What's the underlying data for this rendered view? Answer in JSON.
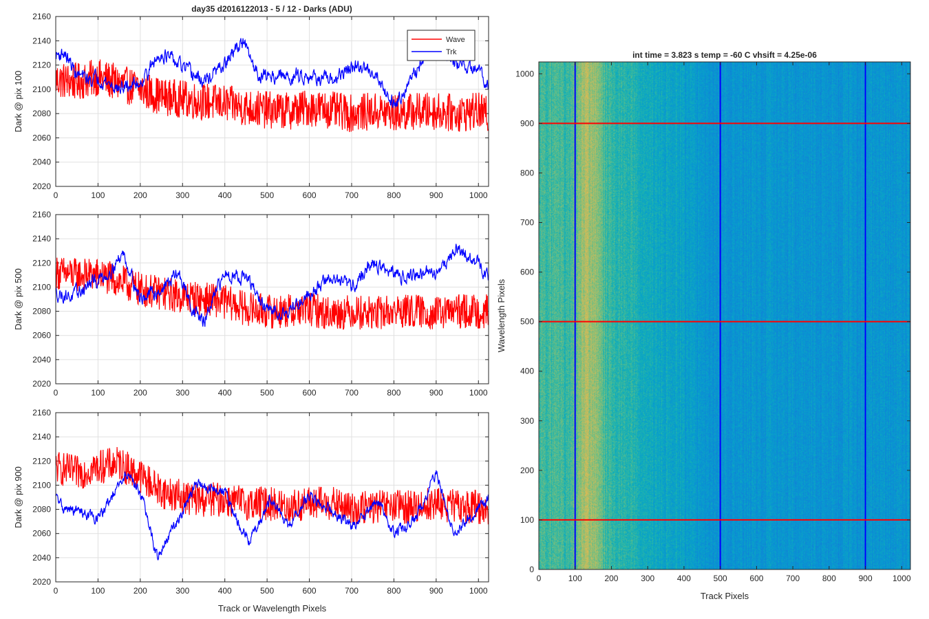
{
  "figure_title": "day35 d2016122013 - 5 / 12 - Darks (ADU)",
  "chart_data": [
    {
      "type": "line",
      "title": "day35 d2016122013 - 5 / 12 - Darks (ADU)",
      "ylabel": "Dark @ pix 100",
      "xlabel": "",
      "xlim": [
        0,
        1024
      ],
      "ylim": [
        2020,
        2160
      ],
      "xticks": [
        0,
        100,
        200,
        300,
        400,
        500,
        600,
        700,
        800,
        900,
        1000
      ],
      "yticks": [
        2020,
        2040,
        2060,
        2080,
        2100,
        2120,
        2140,
        2160
      ],
      "grid": true,
      "legend": {
        "placement": "top-right",
        "entries": [
          "Wave",
          "Trk"
        ]
      },
      "series": [
        {
          "name": "Wave",
          "color": "#ff0000",
          "noise": 12,
          "x": [
            0,
            50,
            100,
            150,
            200,
            250,
            300,
            350,
            400,
            450,
            500,
            550,
            600,
            650,
            700,
            750,
            800,
            850,
            900,
            950,
            1000,
            1024
          ],
          "values": [
            2108,
            2106,
            2110,
            2105,
            2100,
            2094,
            2092,
            2090,
            2088,
            2085,
            2083,
            2082,
            2085,
            2083,
            2080,
            2082,
            2080,
            2082,
            2082,
            2080,
            2082,
            2078
          ]
        },
        {
          "name": "Trk",
          "color": "#0000ff",
          "noise": 5,
          "x": [
            0,
            20,
            50,
            80,
            100,
            150,
            200,
            250,
            300,
            350,
            400,
            440,
            480,
            550,
            600,
            650,
            700,
            750,
            800,
            850,
            890,
            950,
            1000,
            1024
          ],
          "values": [
            2128,
            2130,
            2112,
            2108,
            2110,
            2100,
            2106,
            2130,
            2118,
            2106,
            2120,
            2140,
            2112,
            2110,
            2112,
            2106,
            2118,
            2116,
            2088,
            2112,
            2140,
            2120,
            2115,
            2105
          ]
        }
      ]
    },
    {
      "type": "line",
      "ylabel": "Dark @ pix 500",
      "xlabel": "",
      "xlim": [
        0,
        1024
      ],
      "ylim": [
        2020,
        2160
      ],
      "xticks": [
        0,
        100,
        200,
        300,
        400,
        500,
        600,
        700,
        800,
        900,
        1000
      ],
      "yticks": [
        2020,
        2040,
        2060,
        2080,
        2100,
        2120,
        2140,
        2160
      ],
      "grid": true,
      "series": [
        {
          "name": "Wave",
          "color": "#ff0000",
          "noise": 11,
          "x": [
            0,
            50,
            100,
            150,
            200,
            250,
            300,
            350,
            400,
            450,
            500,
            550,
            600,
            650,
            700,
            750,
            800,
            850,
            900,
            950,
            1000,
            1024
          ],
          "values": [
            2112,
            2110,
            2110,
            2105,
            2098,
            2095,
            2092,
            2090,
            2088,
            2082,
            2080,
            2080,
            2082,
            2078,
            2080,
            2078,
            2080,
            2080,
            2078,
            2080,
            2080,
            2080
          ]
        },
        {
          "name": "Trk",
          "color": "#0000ff",
          "noise": 5,
          "x": [
            0,
            40,
            80,
            120,
            160,
            200,
            250,
            290,
            320,
            350,
            400,
            450,
            500,
            550,
            600,
            650,
            700,
            750,
            800,
            850,
            900,
            950,
            1000,
            1024
          ],
          "values": [
            2095,
            2092,
            2102,
            2110,
            2128,
            2090,
            2098,
            2112,
            2085,
            2070,
            2112,
            2108,
            2080,
            2080,
            2095,
            2108,
            2100,
            2120,
            2110,
            2110,
            2112,
            2132,
            2118,
            2110
          ]
        }
      ]
    },
    {
      "type": "line",
      "ylabel": "Dark @ pix 900",
      "xlabel": "Track or Wavelength Pixels",
      "xlim": [
        0,
        1024
      ],
      "ylim": [
        2020,
        2160
      ],
      "xticks": [
        0,
        100,
        200,
        300,
        400,
        500,
        600,
        700,
        800,
        900,
        1000
      ],
      "yticks": [
        2020,
        2040,
        2060,
        2080,
        2100,
        2120,
        2140,
        2160
      ],
      "grid": true,
      "series": [
        {
          "name": "Wave",
          "color": "#ff0000",
          "noise": 11,
          "x": [
            0,
            50,
            100,
            150,
            200,
            250,
            300,
            350,
            400,
            450,
            500,
            550,
            600,
            650,
            700,
            750,
            800,
            850,
            900,
            950,
            1000,
            1024
          ],
          "values": [
            2115,
            2110,
            2115,
            2118,
            2108,
            2095,
            2090,
            2088,
            2088,
            2085,
            2085,
            2082,
            2085,
            2085,
            2080,
            2082,
            2082,
            2082,
            2085,
            2082,
            2082,
            2080
          ]
        },
        {
          "name": "Trk",
          "color": "#0000ff",
          "noise": 4,
          "x": [
            0,
            20,
            60,
            100,
            130,
            170,
            200,
            240,
            280,
            330,
            400,
            440,
            460,
            510,
            550,
            600,
            650,
            700,
            760,
            800,
            850,
            900,
            940,
            980,
            1024
          ],
          "values": [
            2090,
            2080,
            2078,
            2072,
            2088,
            2110,
            2095,
            2040,
            2065,
            2100,
            2095,
            2060,
            2055,
            2090,
            2065,
            2092,
            2080,
            2065,
            2088,
            2060,
            2072,
            2110,
            2062,
            2072,
            2090
          ]
        }
      ]
    },
    {
      "type": "heatmap",
      "title": "int time = 3.823 s   temp = -60 C   vhsift = 4.25e-06",
      "xlabel": "Track Pixels",
      "ylabel": "Wavelength Pixels",
      "xlim": [
        0,
        1024
      ],
      "ylim": [
        0,
        1024
      ],
      "xticks": [
        0,
        100,
        200,
        300,
        400,
        500,
        600,
        700,
        800,
        900,
        1000
      ],
      "yticks": [
        0,
        100,
        200,
        300,
        400,
        500,
        600,
        700,
        800,
        900,
        1000
      ],
      "colormap": "parula",
      "vertical_lines": {
        "color": "#0000ff",
        "x": [
          100,
          500,
          900
        ]
      },
      "horizontal_lines": {
        "color": "#ff0000",
        "y": [
          100,
          500,
          900
        ]
      },
      "column_profile": {
        "x": [
          0,
          80,
          100,
          110,
          130,
          150,
          170,
          200,
          300,
          400,
          500,
          600,
          700,
          800,
          900,
          1000,
          1024
        ],
        "values": [
          0.62,
          0.6,
          0.64,
          0.7,
          0.76,
          0.74,
          0.66,
          0.58,
          0.52,
          0.46,
          0.4,
          0.42,
          0.42,
          0.41,
          0.42,
          0.42,
          0.42
        ]
      }
    }
  ]
}
